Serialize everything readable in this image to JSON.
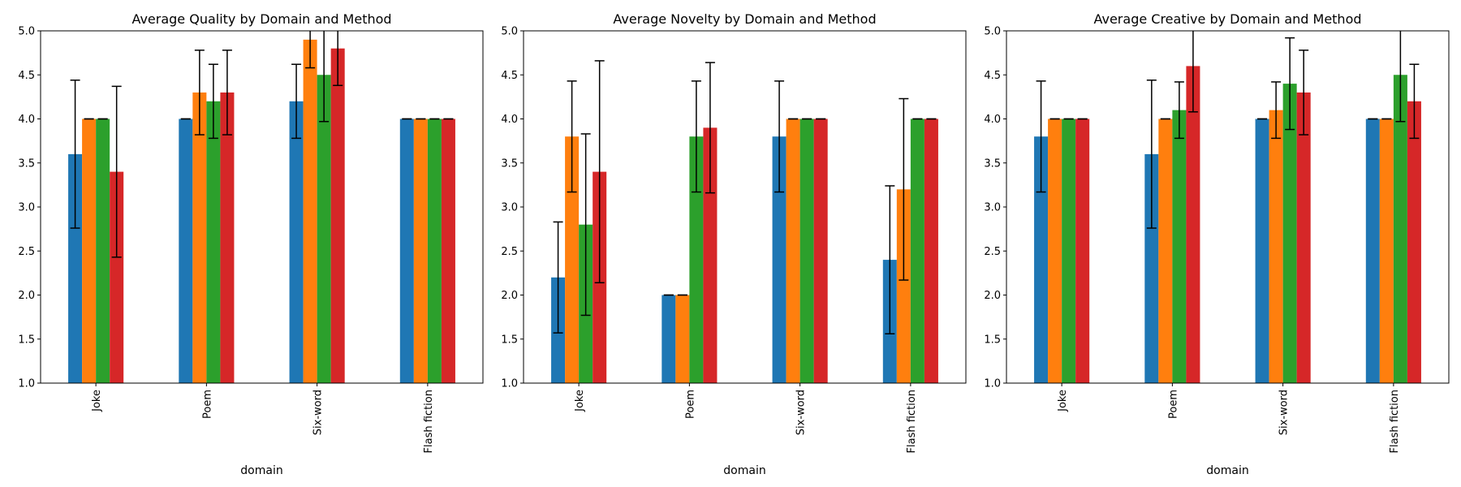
{
  "colors": [
    "#1f77b4",
    "#ff7f0e",
    "#2ca02c",
    "#d62728"
  ],
  "chart_data": [
    {
      "type": "bar",
      "title": "Average Quality by Domain and Method",
      "xlabel": "domain",
      "ylabel": "",
      "ylim": [
        1.0,
        5.0
      ],
      "yticks": [
        "1.0",
        "1.5",
        "2.0",
        "2.5",
        "3.0",
        "3.5",
        "4.0",
        "4.5",
        "5.0"
      ],
      "categories": [
        "Joke",
        "Poem",
        "Six-word",
        "Flash fiction"
      ],
      "series": [
        {
          "values": [
            3.6,
            4.0,
            4.2,
            4.0
          ],
          "errors": [
            0.84,
            0.0,
            0.42,
            0.0
          ]
        },
        {
          "values": [
            4.0,
            4.3,
            4.9,
            4.0
          ],
          "errors": [
            0.0,
            0.48,
            0.32,
            0.0
          ]
        },
        {
          "values": [
            4.0,
            4.2,
            4.5,
            4.0
          ],
          "errors": [
            0.0,
            0.42,
            0.53,
            0.0
          ]
        },
        {
          "values": [
            3.4,
            4.3,
            4.8,
            4.0
          ],
          "errors": [
            0.97,
            0.48,
            0.42,
            0.0
          ]
        }
      ]
    },
    {
      "type": "bar",
      "title": "Average Novelty by Domain and Method",
      "xlabel": "domain",
      "ylabel": "",
      "ylim": [
        1.0,
        5.0
      ],
      "yticks": [
        "1.0",
        "1.5",
        "2.0",
        "2.5",
        "3.0",
        "3.5",
        "4.0",
        "4.5",
        "5.0"
      ],
      "categories": [
        "Joke",
        "Poem",
        "Six-word",
        "Flash fiction"
      ],
      "series": [
        {
          "values": [
            2.2,
            2.0,
            3.8,
            2.4
          ],
          "errors": [
            0.63,
            0.0,
            0.63,
            0.84
          ]
        },
        {
          "values": [
            3.8,
            2.0,
            4.0,
            3.2
          ],
          "errors": [
            0.63,
            0.0,
            0.0,
            1.03
          ]
        },
        {
          "values": [
            2.8,
            3.8,
            4.0,
            4.0
          ],
          "errors": [
            1.03,
            0.63,
            0.0,
            0.0
          ]
        },
        {
          "values": [
            3.4,
            3.9,
            4.0,
            4.0
          ],
          "errors": [
            1.26,
            0.74,
            0.0,
            0.0
          ]
        }
      ]
    },
    {
      "type": "bar",
      "title": "Average Creative by Domain and Method",
      "xlabel": "domain",
      "ylabel": "",
      "ylim": [
        1.0,
        5.0
      ],
      "yticks": [
        "1.0",
        "1.5",
        "2.0",
        "2.5",
        "3.0",
        "3.5",
        "4.0",
        "4.5",
        "5.0"
      ],
      "categories": [
        "Joke",
        "Poem",
        "Six-word",
        "Flash fiction"
      ],
      "series": [
        {
          "values": [
            3.8,
            3.6,
            4.0,
            4.0
          ],
          "errors": [
            0.63,
            0.84,
            0.0,
            0.0
          ]
        },
        {
          "values": [
            4.0,
            4.0,
            4.1,
            4.0
          ],
          "errors": [
            0.0,
            0.0,
            0.32,
            0.0
          ]
        },
        {
          "values": [
            4.0,
            4.1,
            4.4,
            4.5
          ],
          "errors": [
            0.0,
            0.32,
            0.52,
            0.53
          ]
        },
        {
          "values": [
            4.0,
            4.6,
            4.3,
            4.2
          ],
          "errors": [
            0.0,
            0.52,
            0.48,
            0.42
          ]
        }
      ]
    }
  ]
}
